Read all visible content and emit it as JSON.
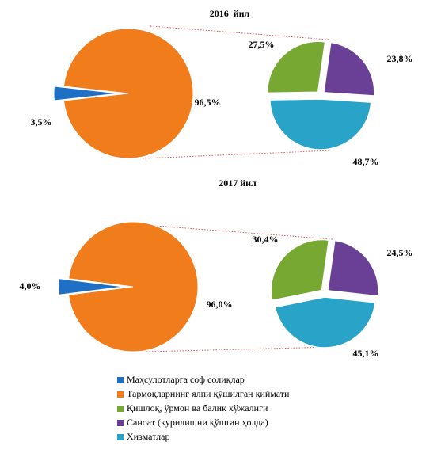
{
  "legend": {
    "series": [
      {
        "name": "Маҳсулотларга соф солиқлар",
        "color": "#1f6fc4"
      },
      {
        "name": "Тармоқларнинг ялпи қўшилган қиймати",
        "color": "#f07c1c"
      },
      {
        "name": "Қишлоқ, ўрмон ва балиқ хўжалиги",
        "color": "#77a832"
      },
      {
        "name": "Саноат (қурилишни қўшган ҳолда)",
        "color": "#6a3f96"
      },
      {
        "name": "Хизматлар",
        "color": "#2aa3c9"
      }
    ]
  },
  "chart_data": [
    {
      "type": "pie_of_pie",
      "title": "2016  йил",
      "values": [
        3.5,
        96.5
      ],
      "value_labels": [
        "3,5%",
        "96,5%"
      ],
      "sub_values": [
        23.8,
        48.7,
        27.5
      ],
      "sub_value_labels": [
        "23,8%",
        "48,7%",
        "27,5%"
      ]
    },
    {
      "type": "pie_of_pie",
      "title": "2017 йил",
      "values": [
        4.0,
        96.0
      ],
      "value_labels": [
        "4,0%",
        "96,0%"
      ],
      "sub_values": [
        24.5,
        45.1,
        30.4
      ],
      "sub_value_labels": [
        "24,5%",
        "45,1%",
        "30,4%"
      ]
    }
  ]
}
